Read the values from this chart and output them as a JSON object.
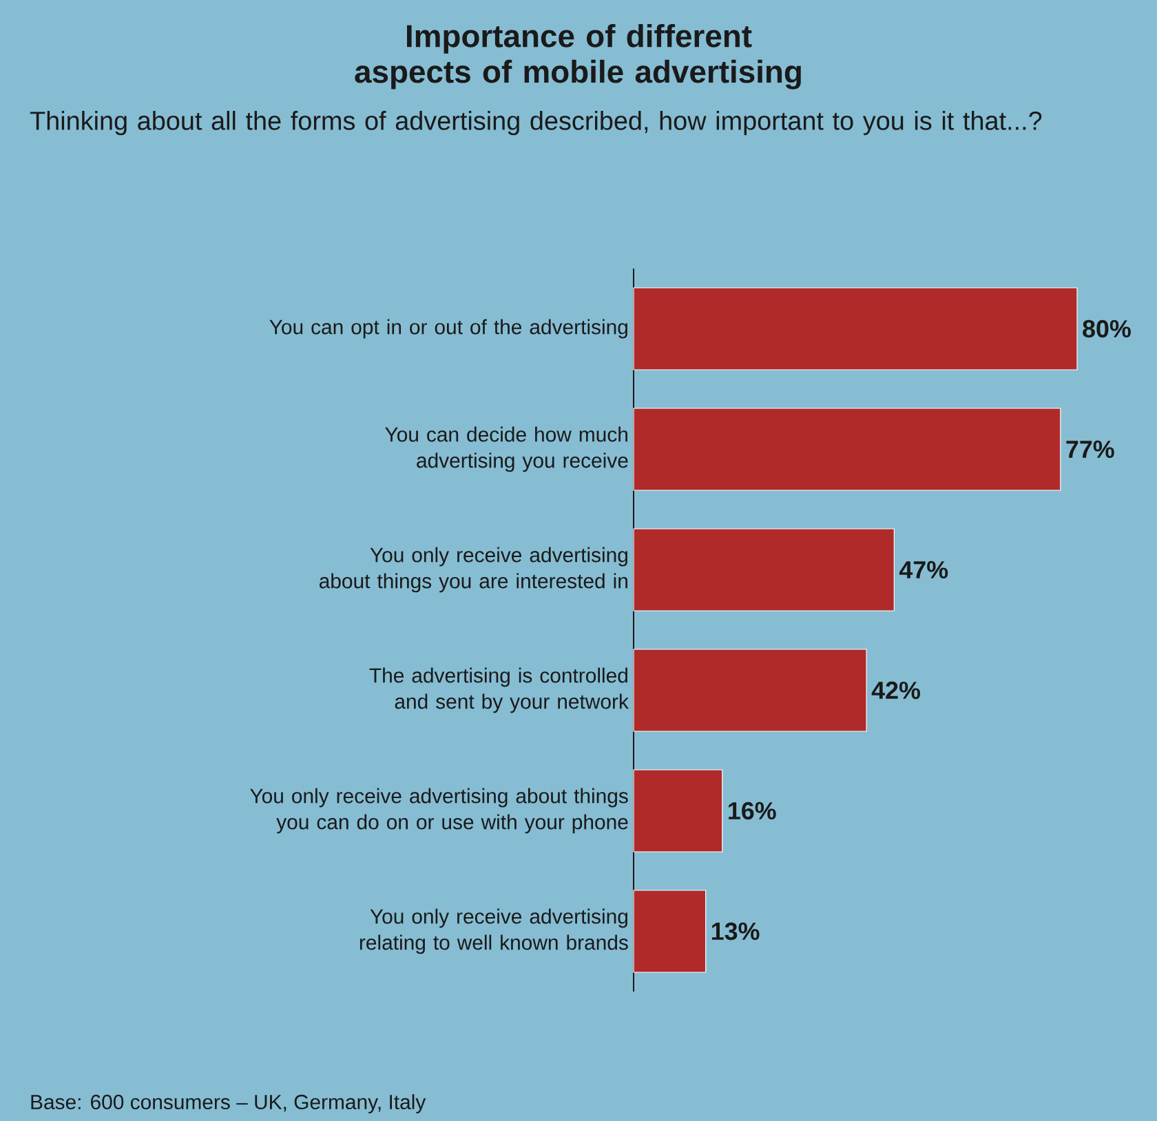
{
  "chart_data": {
    "type": "bar",
    "orientation": "horizontal",
    "title": "Importance of different aspects of mobile advertising",
    "subtitle": "Thinking about all the forms of advertising described, how important to you is it that...?",
    "categories": [
      "You can opt in or out of the advertising",
      "You can decide how much advertising you receive",
      "You only receive advertising about things you are interested in",
      "The advertising is controlled and sent by your network",
      "You only receive advertising about things you can do on or use with your phone",
      "You only receive advertising relating to well known brands"
    ],
    "values": [
      80,
      77,
      47,
      42,
      16,
      13
    ],
    "value_labels": [
      "80%",
      "77%",
      "47%",
      "42%",
      "16%",
      "13%"
    ],
    "color": "#b02a2a",
    "annotations": [
      "Base: 600 consumers – UK, Germany, Italy"
    ]
  }
}
